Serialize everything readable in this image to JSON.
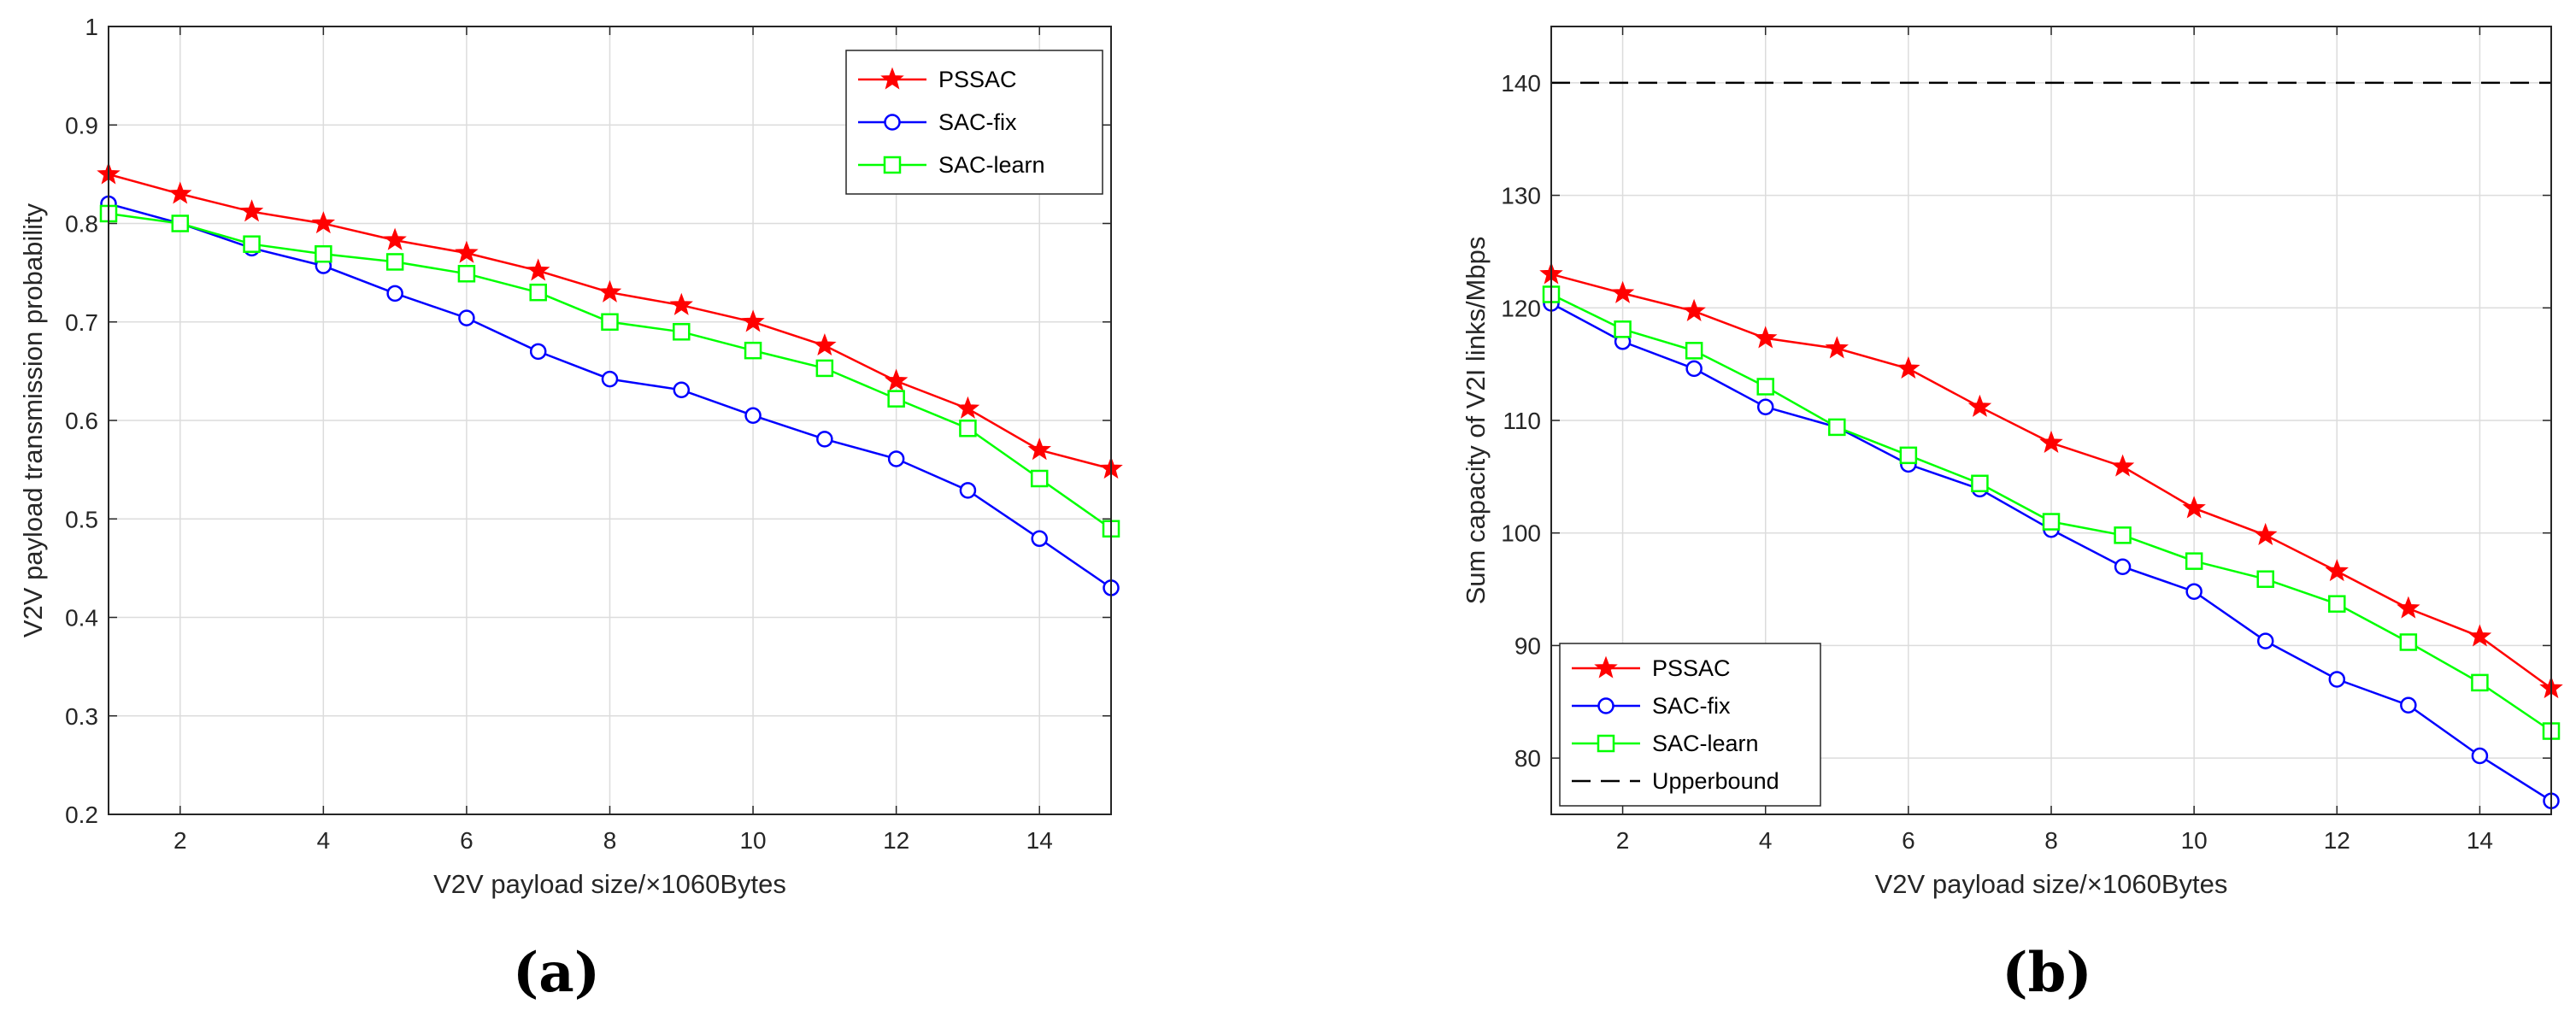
{
  "chart_data": [
    {
      "type": "line",
      "panel_label": "(a)",
      "xlabel": "V2V payload size/×1060Bytes",
      "ylabel": "V2V payload transmission probability",
      "xlim": [
        1,
        15
      ],
      "ylim": [
        0.2,
        1
      ],
      "xticks": [
        2,
        4,
        6,
        8,
        10,
        12,
        14
      ],
      "yticks": [
        0.2,
        0.3,
        0.4,
        0.5,
        0.6,
        0.7,
        0.8,
        0.9,
        1
      ],
      "ytick_labels": [
        "0.2",
        "0.3",
        "0.4",
        "0.5",
        "0.6",
        "0.7",
        "0.8",
        "0.9",
        "1"
      ],
      "grid": true,
      "legend_position": "top-right",
      "x": [
        1,
        2,
        3,
        4,
        5,
        6,
        7,
        8,
        9,
        10,
        11,
        12,
        13,
        14,
        15
      ],
      "series": [
        {
          "name": "PSSAC",
          "color": "#ff0000",
          "marker": "star",
          "values": [
            0.85,
            0.83,
            0.812,
            0.8,
            0.783,
            0.77,
            0.752,
            0.73,
            0.717,
            0.7,
            0.676,
            0.64,
            0.612,
            0.57,
            0.551
          ]
        },
        {
          "name": "SAC-fix",
          "color": "#0000ff",
          "marker": "circle",
          "values": [
            0.82,
            0.8,
            0.775,
            0.757,
            0.729,
            0.704,
            0.67,
            0.642,
            0.631,
            0.605,
            0.581,
            0.561,
            0.529,
            0.48,
            0.43
          ]
        },
        {
          "name": "SAC-learn",
          "color": "#00ff00",
          "marker": "square",
          "values": [
            0.81,
            0.8,
            0.779,
            0.769,
            0.761,
            0.749,
            0.73,
            0.7,
            0.69,
            0.671,
            0.653,
            0.622,
            0.592,
            0.541,
            0.49
          ]
        }
      ]
    },
    {
      "type": "line",
      "panel_label": "(b)",
      "xlabel": "V2V payload size/×1060Bytes",
      "ylabel": "Sum capacity of V2I links/Mbps",
      "xlim": [
        1,
        15
      ],
      "ylim": [
        75,
        145
      ],
      "xticks": [
        2,
        4,
        6,
        8,
        10,
        12,
        14
      ],
      "yticks": [
        80,
        90,
        100,
        110,
        120,
        130,
        140
      ],
      "ytick_labels": [
        "80",
        "90",
        "100",
        "110",
        "120",
        "130",
        "140"
      ],
      "grid": true,
      "legend_position": "bottom-left",
      "x": [
        1,
        2,
        3,
        4,
        5,
        6,
        7,
        8,
        9,
        10,
        11,
        12,
        13,
        14,
        15
      ],
      "series": [
        {
          "name": "PSSAC",
          "color": "#ff0000",
          "marker": "star",
          "values": [
            123,
            121.3,
            119.7,
            117.3,
            116.4,
            114.6,
            111.2,
            108,
            105.9,
            102.2,
            99.8,
            96.6,
            93.3,
            90.8,
            86.2
          ]
        },
        {
          "name": "SAC-fix",
          "color": "#0000ff",
          "marker": "circle",
          "values": [
            120.4,
            117,
            114.6,
            111.2,
            109.4,
            106.1,
            103.9,
            100.3,
            97,
            94.8,
            90.4,
            87,
            84.7,
            80.2,
            76.2
          ]
        },
        {
          "name": "SAC-learn",
          "color": "#00ff00",
          "marker": "square",
          "values": [
            121.2,
            118.1,
            116.2,
            113,
            109.4,
            106.9,
            104.4,
            101,
            99.8,
            97.5,
            95.9,
            93.7,
            90.3,
            86.7,
            82.4
          ]
        },
        {
          "name": "Upperbound",
          "color": "#000000",
          "marker": "none",
          "dashed": true,
          "values": [
            140,
            140,
            140,
            140,
            140,
            140,
            140,
            140,
            140,
            140,
            140,
            140,
            140,
            140,
            140
          ]
        }
      ]
    }
  ]
}
